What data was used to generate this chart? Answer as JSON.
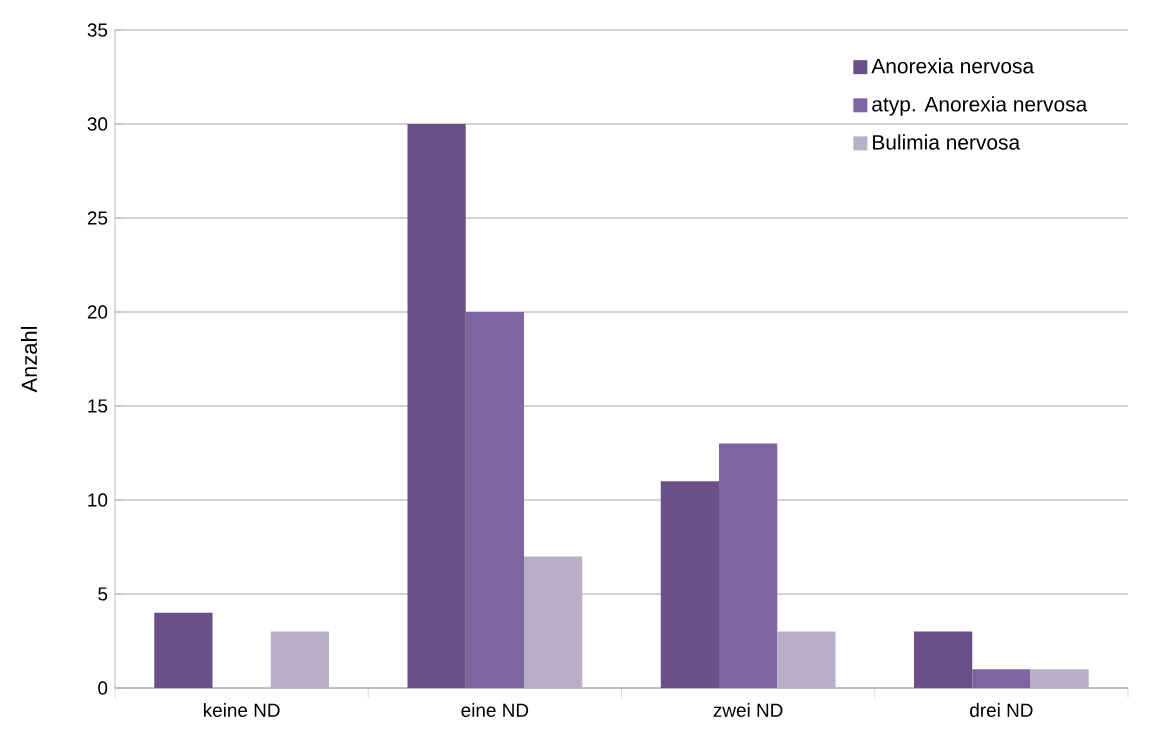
{
  "chart_data": {
    "type": "bar",
    "ylabel": "Anzahl",
    "categories": [
      "keine ND",
      "eine ND",
      "zwei ND",
      "drei ND"
    ],
    "series": [
      {
        "name": "Anorexia nervosa",
        "color": "#6a5087",
        "values": [
          4,
          30,
          11,
          3
        ]
      },
      {
        "name": "atyp. Anorexia nervosa",
        "color": "#8064a2",
        "values": [
          0,
          20,
          13,
          1
        ]
      },
      {
        "name": "Bulimia nervosa",
        "color": "#b9afc9",
        "values": [
          3,
          7,
          3,
          1
        ]
      }
    ],
    "ylim": [
      0,
      35
    ],
    "yticks": [
      0,
      5,
      10,
      15,
      20,
      25,
      30,
      35
    ],
    "grid": "y",
    "legend": "top right"
  }
}
